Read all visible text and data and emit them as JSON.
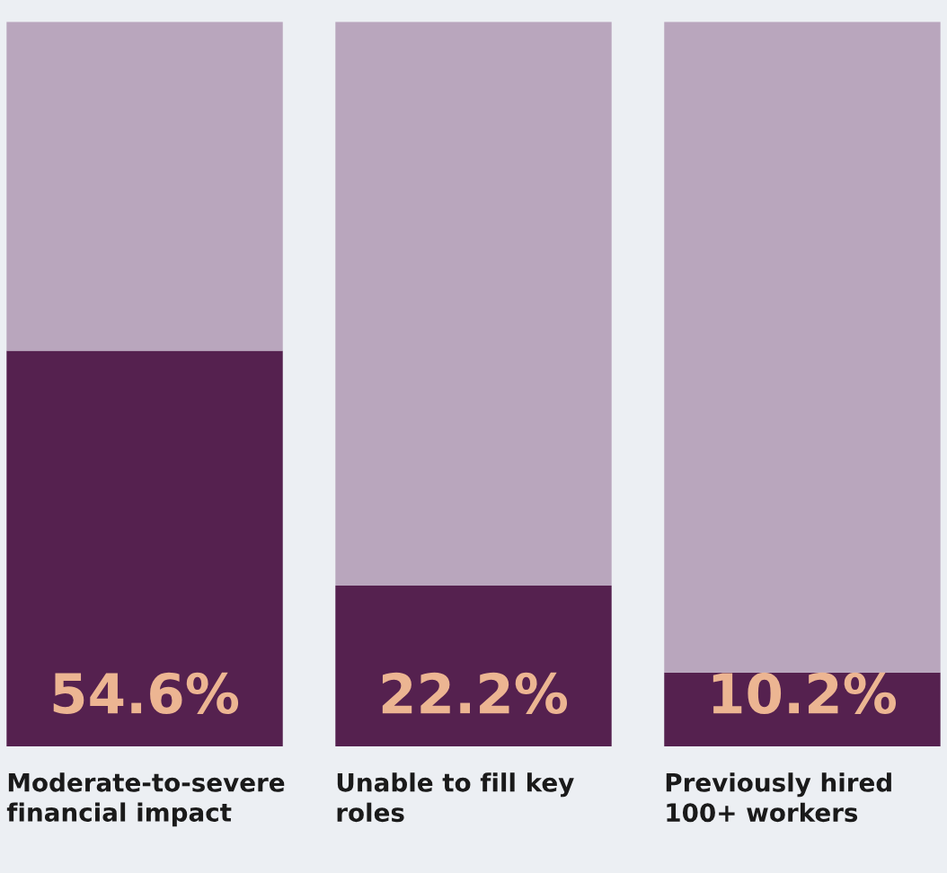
{
  "chart_data": {
    "type": "bar",
    "stacked": true,
    "categories": [
      "Moderate-to-severe financial impact",
      "Unable to fill key roles",
      "Previously hired 100+ workers"
    ],
    "ylim": [
      0,
      100
    ],
    "series": [
      {
        "color": "#55214f",
        "values": [
          54.6,
          22.2,
          10.2
        ],
        "value_labels": [
          "54.6%",
          "22.2%",
          "10.2%"
        ]
      },
      {
        "color": "#b9a6bd",
        "values": [
          45.4,
          77.8,
          89.8
        ]
      }
    ]
  }
}
